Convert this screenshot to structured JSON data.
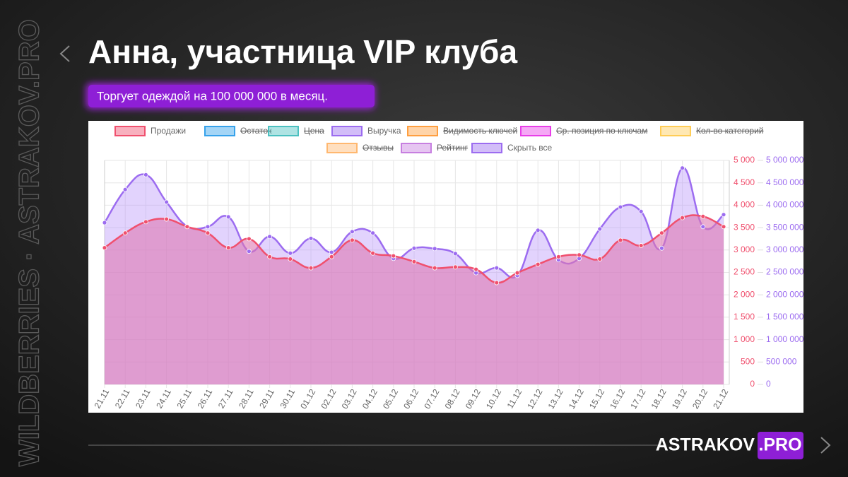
{
  "slide": {
    "title": "Анна, участница VIP клуба",
    "subtitle": "Торгует одеждой на 100 000 000 в месяц.",
    "watermark": "WILDBERRIES · ASTRAKOV.PRO",
    "logo": {
      "name": "ASTRAKOV",
      "suffix": ".PRO"
    }
  },
  "chart_data": {
    "type": "line",
    "categories": [
      "21.11",
      "22.11",
      "23.11",
      "24.11",
      "25.11",
      "26.11",
      "27.11",
      "28.11",
      "29.11",
      "30.11",
      "01.12",
      "02.12",
      "03.12",
      "04.12",
      "05.12",
      "06.12",
      "07.12",
      "08.12",
      "09.12",
      "10.12",
      "11.12",
      "12.12",
      "13.12",
      "14.12",
      "15.12",
      "16.12",
      "17.12",
      "18.12",
      "19.12",
      "20.12",
      "21.12"
    ],
    "series": [
      {
        "name": "Выручка",
        "color": "#9c6cf0",
        "fill": "rgba(185,150,250,0.42)",
        "axis": "y2",
        "values": [
          3610000,
          4350000,
          4680000,
          4070000,
          3530000,
          3520000,
          3740000,
          2970000,
          3300000,
          2930000,
          3260000,
          2950000,
          3410000,
          3380000,
          2810000,
          3040000,
          3030000,
          2920000,
          2490000,
          2600000,
          2430000,
          3440000,
          2780000,
          2810000,
          3470000,
          3960000,
          3860000,
          3040000,
          4830000,
          3520000,
          3790000
        ]
      },
      {
        "name": "Продажи",
        "color": "#f0506e",
        "fill": "rgba(222,120,178,0.6)",
        "axis": "y",
        "values": [
          3050,
          3380,
          3630,
          3690,
          3520,
          3380,
          3050,
          3250,
          2850,
          2800,
          2600,
          2850,
          3220,
          2930,
          2870,
          2740,
          2600,
          2620,
          2570,
          2270,
          2490,
          2680,
          2850,
          2890,
          2800,
          3220,
          3100,
          3380,
          3720,
          3750,
          3520
        ]
      }
    ],
    "legend_items": [
      {
        "name": "Продажи",
        "color": "#f0506e",
        "hidden": false
      },
      {
        "name": "Остаток",
        "color": "#36a2eb",
        "hidden": true
      },
      {
        "name": "Цена",
        "color": "#4bc0c0",
        "hidden": true
      },
      {
        "name": "Выручка",
        "color": "#9c6cf0",
        "hidden": false
      },
      {
        "name": "Видимость ключей",
        "color": "#ff9f40",
        "hidden": true
      },
      {
        "name": "Ср. позиция по ключам",
        "color": "#e83ee8",
        "hidden": true
      },
      {
        "name": "Кол-во категорий",
        "color": "#ffcd56",
        "hidden": true
      },
      {
        "name": "Отзывы",
        "color": "#ffb870",
        "hidden": true
      },
      {
        "name": "Рейтинг",
        "color": "#c77fe0",
        "hidden": true
      },
      {
        "name": "Скрыть все",
        "color": "#9c6cf0",
        "hidden": false
      }
    ],
    "ylim": [
      0,
      5000
    ],
    "yticks": [
      {
        "value": 0,
        "label": "0"
      },
      500,
      {
        "value": 1000,
        "label": "1 000"
      },
      {
        "value": 1500,
        "label": "1 500"
      },
      {
        "value": 2000,
        "label": "2 000"
      },
      {
        "value": 2500,
        "label": "2 500"
      },
      {
        "value": 3000,
        "label": "3 000"
      },
      {
        "value": 3500,
        "label": "3 500"
      },
      {
        "value": 4000,
        "label": "4 000"
      },
      {
        "value": 4500,
        "label": "4 500"
      },
      {
        "value": 5000,
        "label": "5 000"
      }
    ],
    "y2lim": [
      0,
      5000000
    ],
    "y2ticks": [
      {
        "value": 0,
        "label": "0"
      },
      {
        "value": 500000,
        "label": "500 000"
      },
      {
        "value": 1000000,
        "label": "1 000 000"
      },
      {
        "value": 1500000,
        "label": "1 500 000"
      },
      {
        "value": 2000000,
        "label": "2 000 000"
      },
      {
        "value": 2500000,
        "label": "2 500 000"
      },
      {
        "value": 3000000,
        "label": "3 000 000"
      },
      {
        "value": 3500000,
        "label": "3 500 000"
      },
      {
        "value": 4000000,
        "label": "4 000 000"
      },
      {
        "value": 4500000,
        "label": "4 500 000"
      },
      {
        "value": 5000000,
        "label": "5 000 000"
      }
    ],
    "ytick_color": "#f0506e",
    "y2tick_color": "#9c6cf0",
    "grid": true
  }
}
